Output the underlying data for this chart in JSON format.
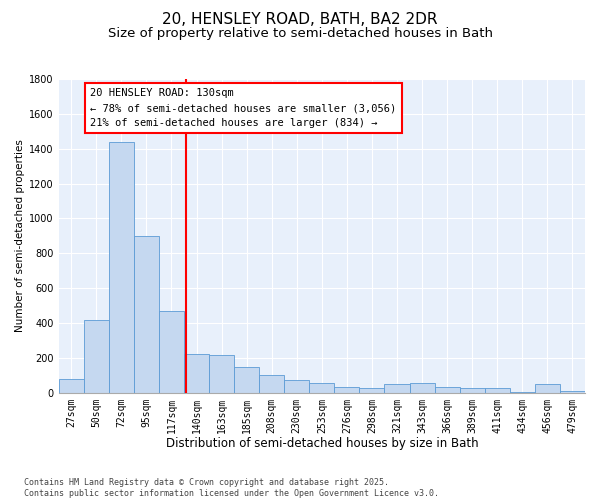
{
  "title1": "20, HENSLEY ROAD, BATH, BA2 2DR",
  "title2": "Size of property relative to semi-detached houses in Bath",
  "xlabel": "Distribution of semi-detached houses by size in Bath",
  "ylabel": "Number of semi-detached properties",
  "categories": [
    "27sqm",
    "50sqm",
    "72sqm",
    "95sqm",
    "117sqm",
    "140sqm",
    "163sqm",
    "185sqm",
    "208sqm",
    "230sqm",
    "253sqm",
    "276sqm",
    "298sqm",
    "321sqm",
    "343sqm",
    "366sqm",
    "389sqm",
    "411sqm",
    "434sqm",
    "456sqm",
    "479sqm"
  ],
  "values": [
    80,
    420,
    1440,
    900,
    470,
    220,
    215,
    150,
    100,
    75,
    55,
    35,
    25,
    50,
    55,
    35,
    25,
    25,
    5,
    50,
    10
  ],
  "bar_color": "#c5d8f0",
  "bar_edge_color": "#5b9bd5",
  "annotation_line1": "20 HENSLEY ROAD: 130sqm",
  "annotation_line2": "← 78% of semi-detached houses are smaller (3,056)",
  "annotation_line3": "21% of semi-detached houses are larger (834) →",
  "ylim": [
    0,
    1800
  ],
  "yticks": [
    0,
    200,
    400,
    600,
    800,
    1000,
    1200,
    1400,
    1600,
    1800
  ],
  "bg_color": "#e8f0fb",
  "footer1": "Contains HM Land Registry data © Crown copyright and database right 2025.",
  "footer2": "Contains public sector information licensed under the Open Government Licence v3.0.",
  "title1_fontsize": 11,
  "title2_fontsize": 9.5,
  "xlabel_fontsize": 8.5,
  "ylabel_fontsize": 7.5,
  "tick_fontsize": 7,
  "annotation_fontsize": 7.5,
  "footer_fontsize": 6
}
